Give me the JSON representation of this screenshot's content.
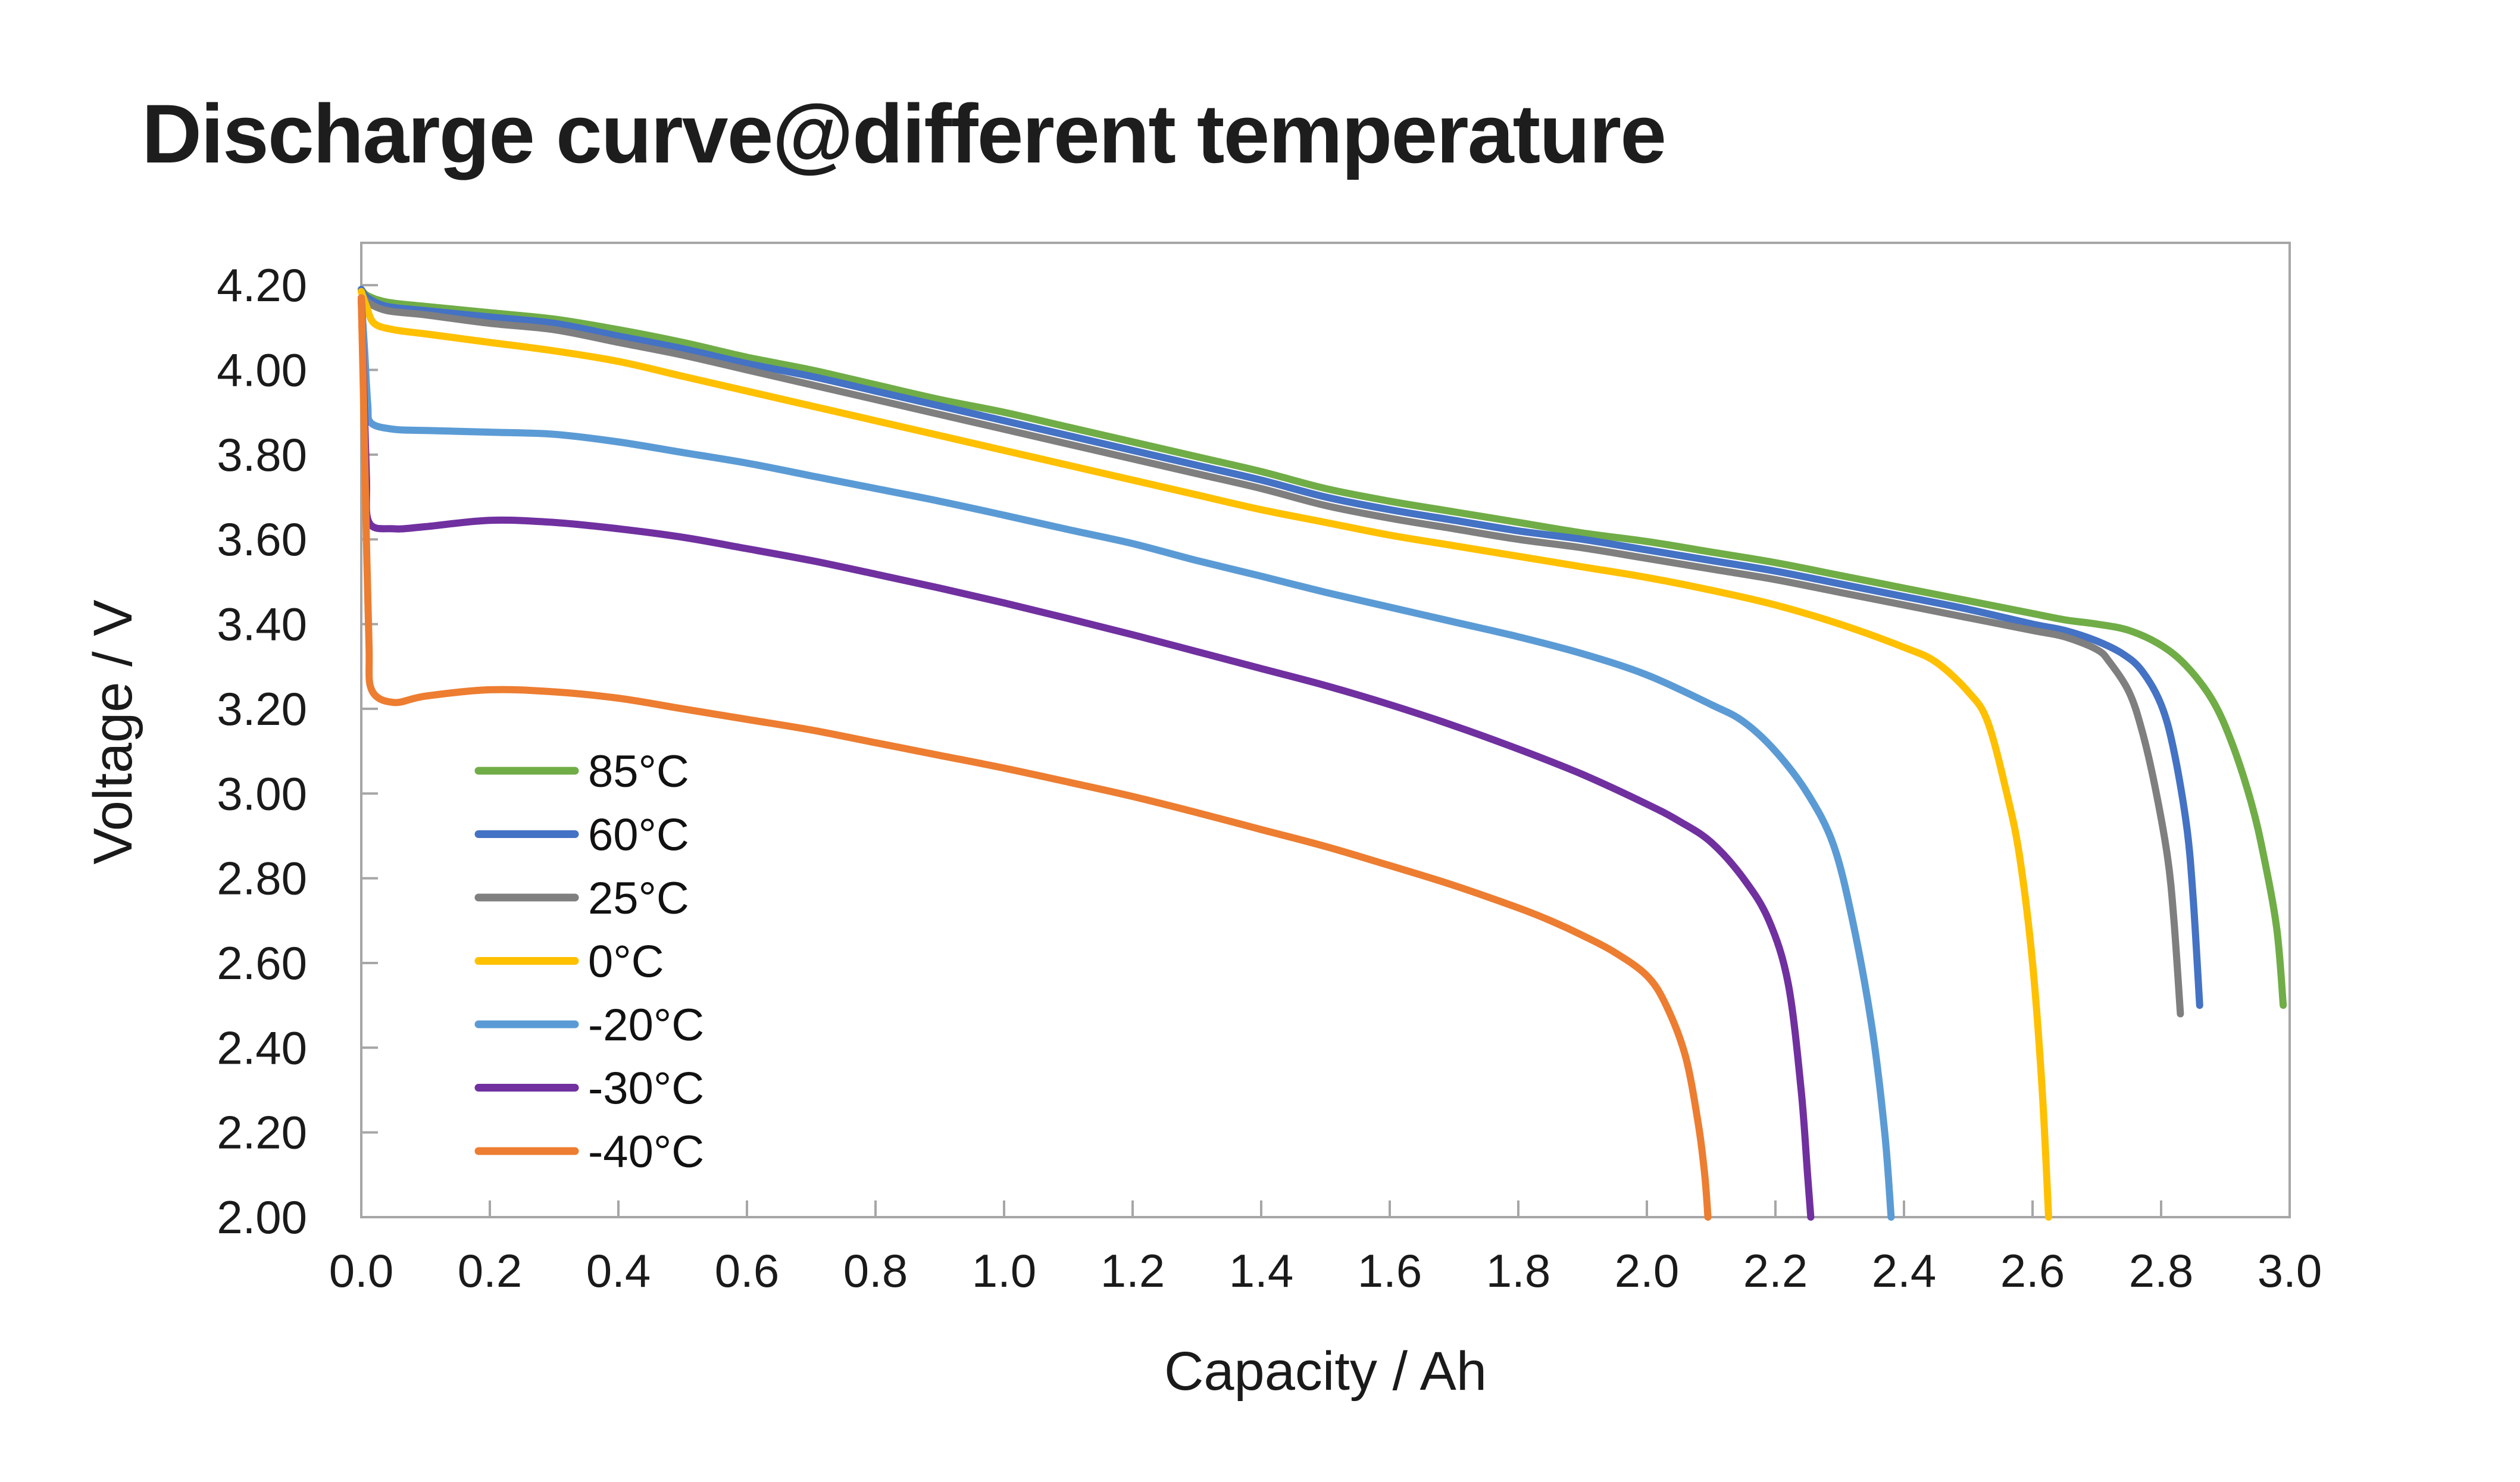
{
  "page": {
    "background": "#ffffff"
  },
  "chart_data": {
    "type": "line",
    "title": "Discharge curve@different temperature",
    "xlabel": "Capacity / Ah",
    "ylabel": "Voltage / V",
    "xlim": [
      0.0,
      3.0
    ],
    "ylim": [
      2.0,
      4.3
    ],
    "grid": false,
    "legend_position": "inside-left",
    "axis_color": "#a6a6a6",
    "tick_color": "#a6a6a6",
    "text_color": "#1a1a1a",
    "x_tick_values": [
      0.0,
      0.2,
      0.4,
      0.6,
      0.8,
      1.0,
      1.2,
      1.4,
      1.6,
      1.8,
      2.0,
      2.2,
      2.4,
      2.6,
      2.8,
      3.0
    ],
    "x_tick_labels": [
      "0.0",
      "0.2",
      "0.4",
      "0.6",
      "0.8",
      "1.0",
      "1.2",
      "1.4",
      "1.6",
      "1.8",
      "2.0",
      "2.2",
      "2.4",
      "2.6",
      "2.8",
      "3.0"
    ],
    "y_tick_values": [
      2.0,
      2.2,
      2.4,
      2.6,
      2.8,
      3.0,
      3.2,
      3.4,
      3.6,
      3.8,
      4.0,
      4.2
    ],
    "y_tick_labels": [
      "2.00",
      "2.20",
      "2.40",
      "2.60",
      "2.80",
      "3.00",
      "3.20",
      "3.40",
      "3.60",
      "3.80",
      "4.00",
      "4.20"
    ],
    "series": [
      {
        "name": "85°C",
        "color": "#70ad47",
        "points": [
          [
            0,
            4.19
          ],
          [
            0.01,
            4.175
          ],
          [
            0.04,
            4.16
          ],
          [
            0.1,
            4.15
          ],
          [
            0.2,
            4.135
          ],
          [
            0.3,
            4.12
          ],
          [
            0.4,
            4.095
          ],
          [
            0.5,
            4.065
          ],
          [
            0.6,
            4.03
          ],
          [
            0.7,
            4.0
          ],
          [
            0.8,
            3.965
          ],
          [
            0.9,
            3.93
          ],
          [
            1.0,
            3.9
          ],
          [
            1.1,
            3.865
          ],
          [
            1.2,
            3.83
          ],
          [
            1.3,
            3.795
          ],
          [
            1.4,
            3.76
          ],
          [
            1.5,
            3.72
          ],
          [
            1.6,
            3.69
          ],
          [
            1.7,
            3.665
          ],
          [
            1.8,
            3.64
          ],
          [
            1.9,
            3.615
          ],
          [
            2.0,
            3.595
          ],
          [
            2.1,
            3.57
          ],
          [
            2.2,
            3.545
          ],
          [
            2.3,
            3.515
          ],
          [
            2.4,
            3.485
          ],
          [
            2.5,
            3.455
          ],
          [
            2.6,
            3.425
          ],
          [
            2.65,
            3.41
          ],
          [
            2.7,
            3.4
          ],
          [
            2.75,
            3.385
          ],
          [
            2.8,
            3.35
          ],
          [
            2.84,
            3.3
          ],
          [
            2.88,
            3.22
          ],
          [
            2.91,
            3.12
          ],
          [
            2.94,
            2.98
          ],
          [
            2.96,
            2.85
          ],
          [
            2.98,
            2.68
          ],
          [
            2.99,
            2.5
          ]
        ]
      },
      {
        "name": "60°C",
        "color": "#4472c4",
        "points": [
          [
            0,
            4.19
          ],
          [
            0.01,
            4.17
          ],
          [
            0.04,
            4.15
          ],
          [
            0.1,
            4.14
          ],
          [
            0.2,
            4.125
          ],
          [
            0.3,
            4.11
          ],
          [
            0.4,
            4.08
          ],
          [
            0.5,
            4.05
          ],
          [
            0.6,
            4.015
          ],
          [
            0.7,
            3.985
          ],
          [
            0.8,
            3.95
          ],
          [
            0.9,
            3.915
          ],
          [
            1.0,
            3.88
          ],
          [
            1.1,
            3.845
          ],
          [
            1.2,
            3.81
          ],
          [
            1.3,
            3.775
          ],
          [
            1.4,
            3.74
          ],
          [
            1.5,
            3.7
          ],
          [
            1.6,
            3.67
          ],
          [
            1.7,
            3.645
          ],
          [
            1.8,
            3.62
          ],
          [
            1.9,
            3.6
          ],
          [
            2.0,
            3.575
          ],
          [
            2.1,
            3.55
          ],
          [
            2.2,
            3.525
          ],
          [
            2.3,
            3.495
          ],
          [
            2.4,
            3.465
          ],
          [
            2.5,
            3.435
          ],
          [
            2.6,
            3.4
          ],
          [
            2.65,
            3.385
          ],
          [
            2.7,
            3.36
          ],
          [
            2.74,
            3.33
          ],
          [
            2.77,
            3.29
          ],
          [
            2.8,
            3.21
          ],
          [
            2.82,
            3.1
          ],
          [
            2.84,
            2.92
          ],
          [
            2.85,
            2.75
          ],
          [
            2.86,
            2.5
          ]
        ]
      },
      {
        "name": "25°C",
        "color": "#7f7f7f",
        "points": [
          [
            0,
            4.185
          ],
          [
            0.01,
            4.16
          ],
          [
            0.04,
            4.14
          ],
          [
            0.1,
            4.13
          ],
          [
            0.2,
            4.11
          ],
          [
            0.3,
            4.095
          ],
          [
            0.4,
            4.065
          ],
          [
            0.5,
            4.035
          ],
          [
            0.6,
            4.0
          ],
          [
            0.7,
            3.965
          ],
          [
            0.8,
            3.93
          ],
          [
            0.9,
            3.895
          ],
          [
            1.0,
            3.86
          ],
          [
            1.1,
            3.825
          ],
          [
            1.2,
            3.79
          ],
          [
            1.3,
            3.755
          ],
          [
            1.4,
            3.72
          ],
          [
            1.5,
            3.68
          ],
          [
            1.6,
            3.65
          ],
          [
            1.7,
            3.625
          ],
          [
            1.8,
            3.6
          ],
          [
            1.9,
            3.58
          ],
          [
            2.0,
            3.555
          ],
          [
            2.1,
            3.53
          ],
          [
            2.2,
            3.505
          ],
          [
            2.3,
            3.475
          ],
          [
            2.4,
            3.445
          ],
          [
            2.5,
            3.415
          ],
          [
            2.6,
            3.385
          ],
          [
            2.65,
            3.37
          ],
          [
            2.7,
            3.34
          ],
          [
            2.72,
            3.31
          ],
          [
            2.75,
            3.24
          ],
          [
            2.77,
            3.15
          ],
          [
            2.79,
            3.02
          ],
          [
            2.81,
            2.85
          ],
          [
            2.82,
            2.7
          ],
          [
            2.83,
            2.48
          ]
        ]
      },
      {
        "name": "0°C",
        "color": "#ffc000",
        "points": [
          [
            0,
            4.185
          ],
          [
            0.008,
            4.15
          ],
          [
            0.02,
            4.11
          ],
          [
            0.05,
            4.095
          ],
          [
            0.1,
            4.085
          ],
          [
            0.2,
            4.065
          ],
          [
            0.3,
            4.045
          ],
          [
            0.4,
            4.02
          ],
          [
            0.5,
            3.985
          ],
          [
            0.6,
            3.95
          ],
          [
            0.7,
            3.915
          ],
          [
            0.8,
            3.88
          ],
          [
            0.9,
            3.845
          ],
          [
            1.0,
            3.81
          ],
          [
            1.1,
            3.775
          ],
          [
            1.2,
            3.74
          ],
          [
            1.3,
            3.705
          ],
          [
            1.4,
            3.67
          ],
          [
            1.5,
            3.64
          ],
          [
            1.6,
            3.61
          ],
          [
            1.7,
            3.585
          ],
          [
            1.8,
            3.56
          ],
          [
            1.9,
            3.535
          ],
          [
            2.0,
            3.51
          ],
          [
            2.1,
            3.48
          ],
          [
            2.2,
            3.445
          ],
          [
            2.3,
            3.4
          ],
          [
            2.4,
            3.345
          ],
          [
            2.45,
            3.31
          ],
          [
            2.5,
            3.24
          ],
          [
            2.53,
            3.17
          ],
          [
            2.56,
            3.0
          ],
          [
            2.58,
            2.85
          ],
          [
            2.6,
            2.6
          ],
          [
            2.615,
            2.3
          ],
          [
            2.625,
            2.0
          ]
        ]
      },
      {
        "name": "-20°C",
        "color": "#5b9bd5",
        "points": [
          [
            0,
            4.17
          ],
          [
            0.005,
            4.05
          ],
          [
            0.01,
            3.92
          ],
          [
            0.015,
            3.875
          ],
          [
            0.05,
            3.86
          ],
          [
            0.1,
            3.857
          ],
          [
            0.2,
            3.853
          ],
          [
            0.3,
            3.848
          ],
          [
            0.4,
            3.83
          ],
          [
            0.5,
            3.805
          ],
          [
            0.6,
            3.78
          ],
          [
            0.7,
            3.75
          ],
          [
            0.8,
            3.72
          ],
          [
            0.9,
            3.69
          ],
          [
            1.0,
            3.657
          ],
          [
            1.1,
            3.623
          ],
          [
            1.2,
            3.59
          ],
          [
            1.3,
            3.55
          ],
          [
            1.4,
            3.513
          ],
          [
            1.5,
            3.475
          ],
          [
            1.6,
            3.44
          ],
          [
            1.7,
            3.405
          ],
          [
            1.8,
            3.37
          ],
          [
            1.9,
            3.33
          ],
          [
            2.0,
            3.28
          ],
          [
            2.1,
            3.21
          ],
          [
            2.15,
            3.17
          ],
          [
            2.2,
            3.1
          ],
          [
            2.25,
            3.0
          ],
          [
            2.29,
            2.88
          ],
          [
            2.32,
            2.7
          ],
          [
            2.35,
            2.45
          ],
          [
            2.37,
            2.2
          ],
          [
            2.38,
            2.0
          ]
        ]
      },
      {
        "name": "-30°C",
        "color": "#7030a0",
        "points": [
          [
            0,
            4.17
          ],
          [
            0.004,
            3.95
          ],
          [
            0.008,
            3.75
          ],
          [
            0.012,
            3.64
          ],
          [
            0.05,
            3.625
          ],
          [
            0.1,
            3.63
          ],
          [
            0.2,
            3.645
          ],
          [
            0.3,
            3.64
          ],
          [
            0.4,
            3.625
          ],
          [
            0.5,
            3.605
          ],
          [
            0.6,
            3.578
          ],
          [
            0.7,
            3.55
          ],
          [
            0.8,
            3.518
          ],
          [
            0.9,
            3.485
          ],
          [
            1.0,
            3.45
          ],
          [
            1.1,
            3.413
          ],
          [
            1.2,
            3.375
          ],
          [
            1.3,
            3.335
          ],
          [
            1.4,
            3.295
          ],
          [
            1.5,
            3.255
          ],
          [
            1.6,
            3.21
          ],
          [
            1.7,
            3.16
          ],
          [
            1.8,
            3.105
          ],
          [
            1.9,
            3.045
          ],
          [
            2.0,
            2.975
          ],
          [
            2.05,
            2.935
          ],
          [
            2.1,
            2.885
          ],
          [
            2.15,
            2.8
          ],
          [
            2.19,
            2.7
          ],
          [
            2.22,
            2.55
          ],
          [
            2.24,
            2.3
          ],
          [
            2.25,
            2.1
          ],
          [
            2.255,
            2.0
          ]
        ]
      },
      {
        "name": "-40°C",
        "color": "#ed7d31",
        "points": [
          [
            0,
            4.17
          ],
          [
            0.004,
            3.9
          ],
          [
            0.008,
            3.6
          ],
          [
            0.012,
            3.35
          ],
          [
            0.016,
            3.245
          ],
          [
            0.05,
            3.215
          ],
          [
            0.1,
            3.23
          ],
          [
            0.2,
            3.245
          ],
          [
            0.3,
            3.24
          ],
          [
            0.4,
            3.225
          ],
          [
            0.5,
            3.2
          ],
          [
            0.6,
            3.175
          ],
          [
            0.7,
            3.15
          ],
          [
            0.8,
            3.12
          ],
          [
            0.9,
            3.09
          ],
          [
            1.0,
            3.06
          ],
          [
            1.1,
            3.027
          ],
          [
            1.2,
            2.993
          ],
          [
            1.3,
            2.955
          ],
          [
            1.4,
            2.915
          ],
          [
            1.5,
            2.875
          ],
          [
            1.6,
            2.83
          ],
          [
            1.7,
            2.783
          ],
          [
            1.8,
            2.73
          ],
          [
            1.85,
            2.7
          ],
          [
            1.9,
            2.665
          ],
          [
            1.95,
            2.625
          ],
          [
            2.0,
            2.57
          ],
          [
            2.03,
            2.5
          ],
          [
            2.06,
            2.38
          ],
          [
            2.08,
            2.22
          ],
          [
            2.09,
            2.1
          ],
          [
            2.095,
            2.0
          ]
        ]
      }
    ]
  }
}
